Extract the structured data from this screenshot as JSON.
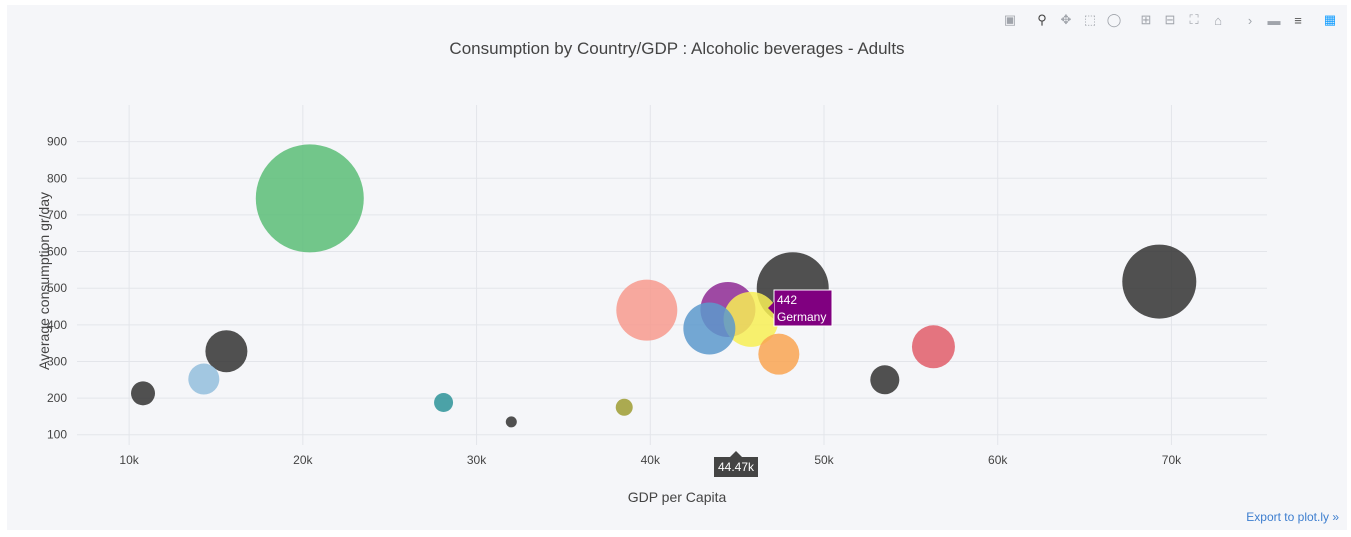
{
  "toolbar": {
    "icons": [
      "camera-icon",
      "zoom-icon",
      "pan-icon",
      "box-select-icon",
      "lasso-icon",
      "zoom-in-icon",
      "zoom-out-icon",
      "autoscale-icon",
      "reset-axes-icon",
      "spike-lines-icon",
      "hover-closest-icon",
      "hover-compare-icon",
      "plotly-logo-icon"
    ]
  },
  "export_link": "Export to plot.ly »",
  "hover": {
    "value": "442",
    "country": "Germany",
    "color": "#800080",
    "x_label": "44.47k"
  },
  "chart_data": {
    "type": "scatter",
    "title": "Consumption by Country/GDP : Alcoholic beverages  -  Adults",
    "xlabel": "GDP per Capita",
    "ylabel": "Average consumption gr/day",
    "xlim": [
      7000,
      75500
    ],
    "ylim": [
      72,
      1000
    ],
    "xticks": [
      10000,
      20000,
      30000,
      40000,
      50000,
      60000,
      70000
    ],
    "xtick_labels": [
      "10k",
      "20k",
      "30k",
      "40k",
      "50k",
      "60k",
      "70k"
    ],
    "yticks": [
      100,
      200,
      300,
      400,
      500,
      600,
      700,
      800,
      900
    ],
    "ytick_labels": [
      "100",
      "200",
      "300",
      "400",
      "500",
      "600",
      "700",
      "800",
      "900"
    ],
    "grid": true,
    "points": [
      {
        "x": 20400,
        "y": 745,
        "size": 108,
        "color": "#5bbd77"
      },
      {
        "x": 69300,
        "y": 518,
        "size": 74,
        "color": "#333333"
      },
      {
        "x": 48200,
        "y": 500,
        "size": 72,
        "color": "#333333"
      },
      {
        "x": 39800,
        "y": 440,
        "size": 61,
        "color": "#f79a8e"
      },
      {
        "x": 43400,
        "y": 390,
        "size": 52,
        "color": "#5c99cc"
      },
      {
        "x": 44470,
        "y": 442,
        "size": 55,
        "color": "#8e2a94"
      },
      {
        "x": 45800,
        "y": 415,
        "size": 55,
        "color": "#f7ef55"
      },
      {
        "x": 47400,
        "y": 320,
        "size": 41,
        "color": "#f9a552"
      },
      {
        "x": 56300,
        "y": 340,
        "size": 43,
        "color": "#e05d6a"
      },
      {
        "x": 15600,
        "y": 328,
        "size": 42,
        "color": "#333333"
      },
      {
        "x": 14300,
        "y": 252,
        "size": 31,
        "color": "#93bedd"
      },
      {
        "x": 53500,
        "y": 250,
        "size": 29,
        "color": "#333333"
      },
      {
        "x": 10800,
        "y": 213,
        "size": 24,
        "color": "#333333"
      },
      {
        "x": 28100,
        "y": 188,
        "size": 19,
        "color": "#2d9399"
      },
      {
        "x": 38500,
        "y": 175,
        "size": 17,
        "color": "#9e9c33"
      },
      {
        "x": 32000,
        "y": 135,
        "size": 11,
        "color": "#333333"
      }
    ]
  }
}
